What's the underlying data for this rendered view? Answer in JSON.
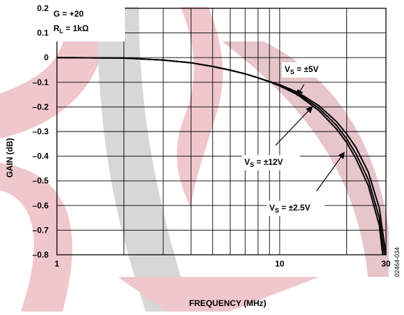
{
  "chart_data": {
    "type": "line",
    "x_scale": "log",
    "xlabel": "FREQUENCY (MHz)",
    "ylabel": "GAIN (dB)",
    "xlim": [
      1,
      30
    ],
    "ylim": [
      -0.8,
      0.2
    ],
    "grid": true,
    "x_ticks": [
      {
        "value": 1,
        "label": "1"
      },
      {
        "value": 10,
        "label": "10"
      },
      {
        "value": 30,
        "label": "30"
      }
    ],
    "y_ticks": [
      {
        "value": 0.2,
        "label": "0.2"
      },
      {
        "value": 0.1,
        "label": "0.1"
      },
      {
        "value": 0,
        "label": "0"
      },
      {
        "value": -0.1,
        "label": "–0.1"
      },
      {
        "value": -0.2,
        "label": "–0.2"
      },
      {
        "value": -0.3,
        "label": "–0.3"
      },
      {
        "value": -0.4,
        "label": "–0.4"
      },
      {
        "value": -0.5,
        "label": "–0.5"
      },
      {
        "value": -0.6,
        "label": "–0.6"
      },
      {
        "value": -0.7,
        "label": "–0.7"
      },
      {
        "value": -0.8,
        "label": "–0.8"
      }
    ],
    "conditions": {
      "gain": "G = +20",
      "load_prefix": "R",
      "load_sub": "L",
      "load_value": " = 1kΩ"
    },
    "series": [
      {
        "name": "VS = ±5V",
        "x": [
          1,
          2,
          3,
          4,
          5,
          6,
          7,
          8,
          9,
          10,
          12,
          15,
          18,
          20,
          22,
          25,
          28,
          29
        ],
        "y": [
          0,
          -0.002,
          -0.01,
          -0.021,
          -0.036,
          -0.051,
          -0.066,
          -0.082,
          -0.098,
          -0.115,
          -0.15,
          -0.215,
          -0.29,
          -0.345,
          -0.41,
          -0.52,
          -0.68,
          -0.8
        ]
      },
      {
        "name": "VS = ±12V",
        "x": [
          1,
          2,
          3,
          4,
          5,
          6,
          7,
          8,
          9,
          10,
          12,
          15,
          18,
          20,
          22,
          25,
          28,
          29.5
        ],
        "y": [
          0,
          -0.002,
          -0.01,
          -0.021,
          -0.036,
          -0.051,
          -0.066,
          -0.082,
          -0.098,
          -0.113,
          -0.145,
          -0.205,
          -0.275,
          -0.33,
          -0.39,
          -0.495,
          -0.65,
          -0.8
        ]
      },
      {
        "name": "VS = ±2.5V",
        "x": [
          1,
          2,
          3,
          4,
          5,
          6,
          7,
          8,
          9,
          10,
          12,
          15,
          18,
          20,
          22,
          25,
          28,
          30
        ],
        "y": [
          0,
          -0.002,
          -0.01,
          -0.021,
          -0.036,
          -0.051,
          -0.066,
          -0.082,
          -0.097,
          -0.11,
          -0.14,
          -0.195,
          -0.26,
          -0.31,
          -0.365,
          -0.465,
          -0.61,
          -0.8
        ]
      }
    ],
    "annotations": [
      {
        "prefix": "V",
        "sub": "S",
        "text": " = ±5V",
        "x": 12,
        "y": -0.155
      },
      {
        "prefix": "V",
        "sub": "S",
        "text": " = ±12V",
        "x": 14,
        "y": -0.2
      },
      {
        "prefix": "V",
        "sub": "S",
        "text": " = ±2.5V",
        "x": 19.5,
        "y": -0.385
      }
    ],
    "figure_id": "02464-034"
  }
}
